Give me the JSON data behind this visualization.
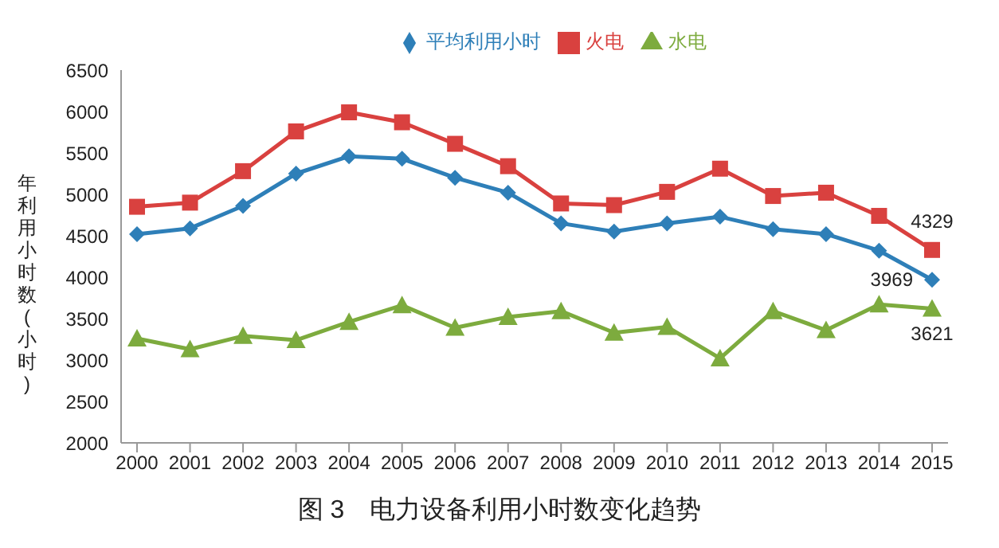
{
  "chart_data": {
    "type": "line",
    "title": "图 3　电力设备利用小时数变化趋势",
    "ylabel": "年利用小时数(小时)",
    "categories": [
      "2000",
      "2001",
      "2002",
      "2003",
      "2004",
      "2005",
      "2006",
      "2007",
      "2008",
      "2009",
      "2010",
      "2011",
      "2012",
      "2013",
      "2014",
      "2015"
    ],
    "series": [
      {
        "name": "平均利用小时",
        "color": "#2e7fb8",
        "marker": "diamond",
        "values": [
          4520,
          4590,
          4860,
          5250,
          5460,
          5430,
          5200,
          5020,
          4650,
          4550,
          4650,
          4730,
          4580,
          4520,
          4320,
          3969
        ],
        "value_labels": [
          null,
          null,
          null,
          null,
          null,
          null,
          null,
          null,
          null,
          null,
          null,
          null,
          null,
          null,
          null,
          "3969"
        ]
      },
      {
        "name": "火电",
        "color": "#d9413f",
        "marker": "square",
        "values": [
          4850,
          4900,
          5280,
          5760,
          5990,
          5870,
          5610,
          5340,
          4890,
          4870,
          5030,
          5310,
          4980,
          5020,
          4740,
          4329
        ],
        "value_labels": [
          null,
          null,
          null,
          null,
          null,
          null,
          null,
          null,
          null,
          null,
          null,
          null,
          null,
          null,
          null,
          "4329"
        ]
      },
      {
        "name": "水电",
        "color": "#7dab3e",
        "marker": "triangle",
        "values": [
          3260,
          3130,
          3290,
          3240,
          3460,
          3660,
          3390,
          3520,
          3590,
          3330,
          3400,
          3020,
          3590,
          3360,
          3670,
          3621
        ],
        "value_labels": [
          null,
          null,
          null,
          null,
          null,
          null,
          null,
          null,
          null,
          null,
          null,
          null,
          null,
          null,
          null,
          "3621"
        ]
      }
    ],
    "ylim": [
      2000,
      6500
    ],
    "yticks": [
      2000,
      2500,
      3000,
      3500,
      4000,
      4500,
      5000,
      5500,
      6000,
      6500
    ],
    "grid": false,
    "legend": "top",
    "line_style": "solid"
  }
}
